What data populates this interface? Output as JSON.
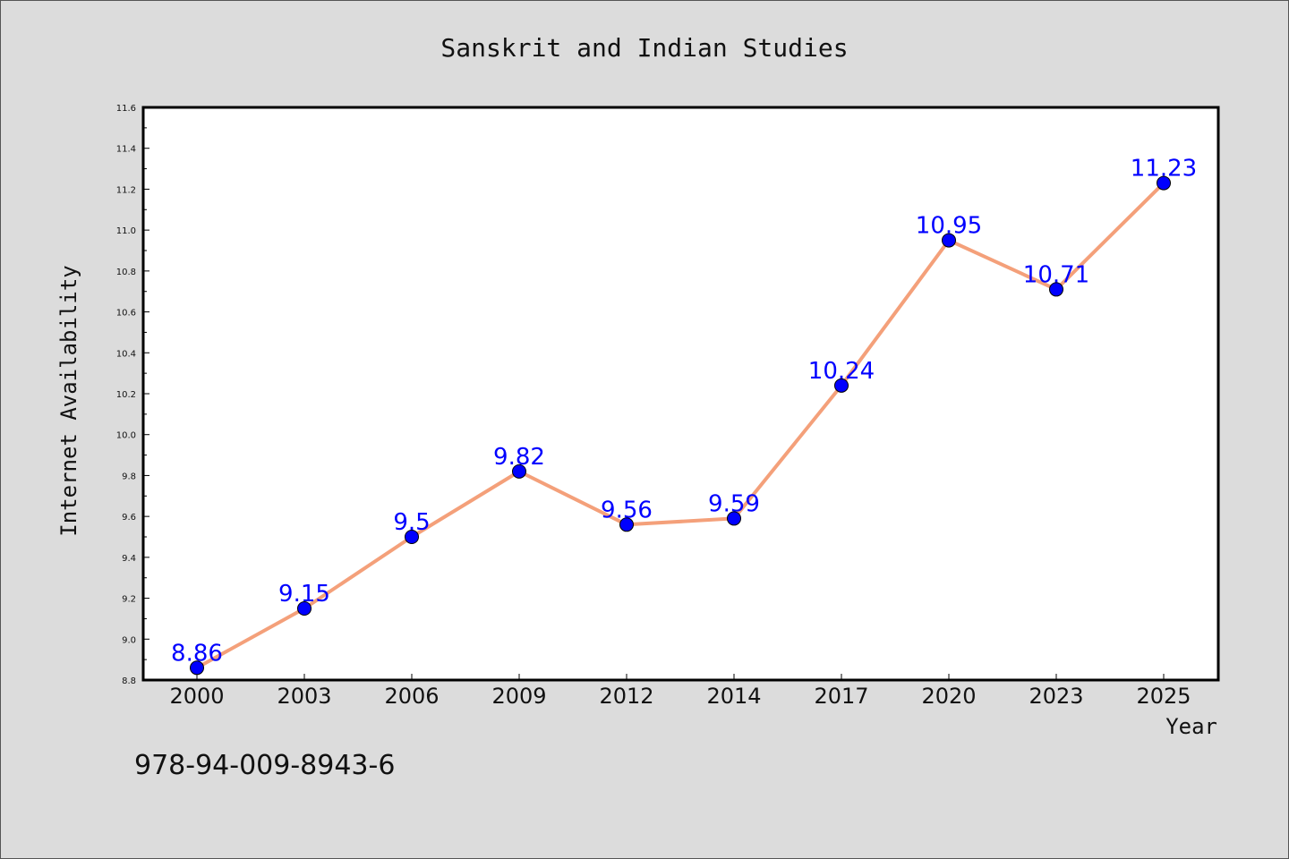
{
  "chart_data": {
    "type": "line",
    "title": "Sanskrit and Indian Studies",
    "xlabel": "Year",
    "ylabel": "Internet Availability",
    "categories": [
      "2000",
      "2003",
      "2006",
      "2009",
      "2012",
      "2014",
      "2017",
      "2020",
      "2023",
      "2025"
    ],
    "series": [
      {
        "values": [
          8.86,
          9.15,
          9.5,
          9.82,
          9.56,
          9.59,
          10.24,
          10.95,
          10.71,
          11.23
        ],
        "data_labels": [
          "8.86",
          "9.15",
          "9.5",
          "9.82",
          "9.56",
          "9.59",
          "10.24",
          "10.95",
          "10.71",
          "11.23"
        ],
        "line_color": "#f4a07a",
        "marker_color": "#0000ff"
      }
    ],
    "ylim": [
      8.8,
      11.6
    ],
    "yticks": [
      "8.8",
      "9.0",
      "9.2",
      "9.4",
      "9.6",
      "9.8",
      "10.0",
      "10.2",
      "10.4",
      "10.6",
      "10.8",
      "11.0",
      "11.2",
      "11.4",
      "11.6"
    ],
    "grid": false,
    "label_color": "#0000ff"
  },
  "footer_text": "978-94-009-8943-6"
}
